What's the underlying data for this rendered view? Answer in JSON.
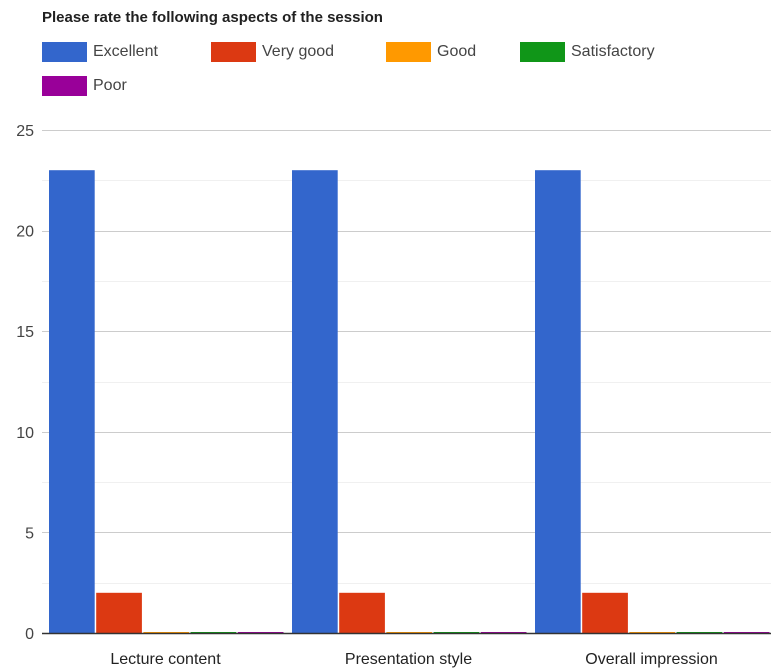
{
  "chart_data": {
    "type": "bar",
    "title": "Please rate the following aspects of the session",
    "xlabel": "",
    "ylabel": "",
    "categories": [
      "Lecture content",
      "Presentation style",
      "Overall impression"
    ],
    "series": [
      {
        "name": "Excellent",
        "color": "#3366cc",
        "values": [
          23,
          23,
          23
        ]
      },
      {
        "name": "Very good",
        "color": "#dc3912",
        "values": [
          2,
          2,
          2
        ]
      },
      {
        "name": "Good",
        "color": "#ff9900",
        "values": [
          0,
          0,
          0
        ]
      },
      {
        "name": "Satisfactory",
        "color": "#109618",
        "values": [
          0,
          0,
          0
        ]
      },
      {
        "name": "Poor",
        "color": "#990099",
        "values": [
          0,
          0,
          0
        ]
      }
    ],
    "ylim": [
      0,
      25
    ],
    "y_ticks": [
      "0",
      "5",
      "10",
      "15",
      "20",
      "25"
    ],
    "grid": true,
    "legend_position": "top"
  }
}
